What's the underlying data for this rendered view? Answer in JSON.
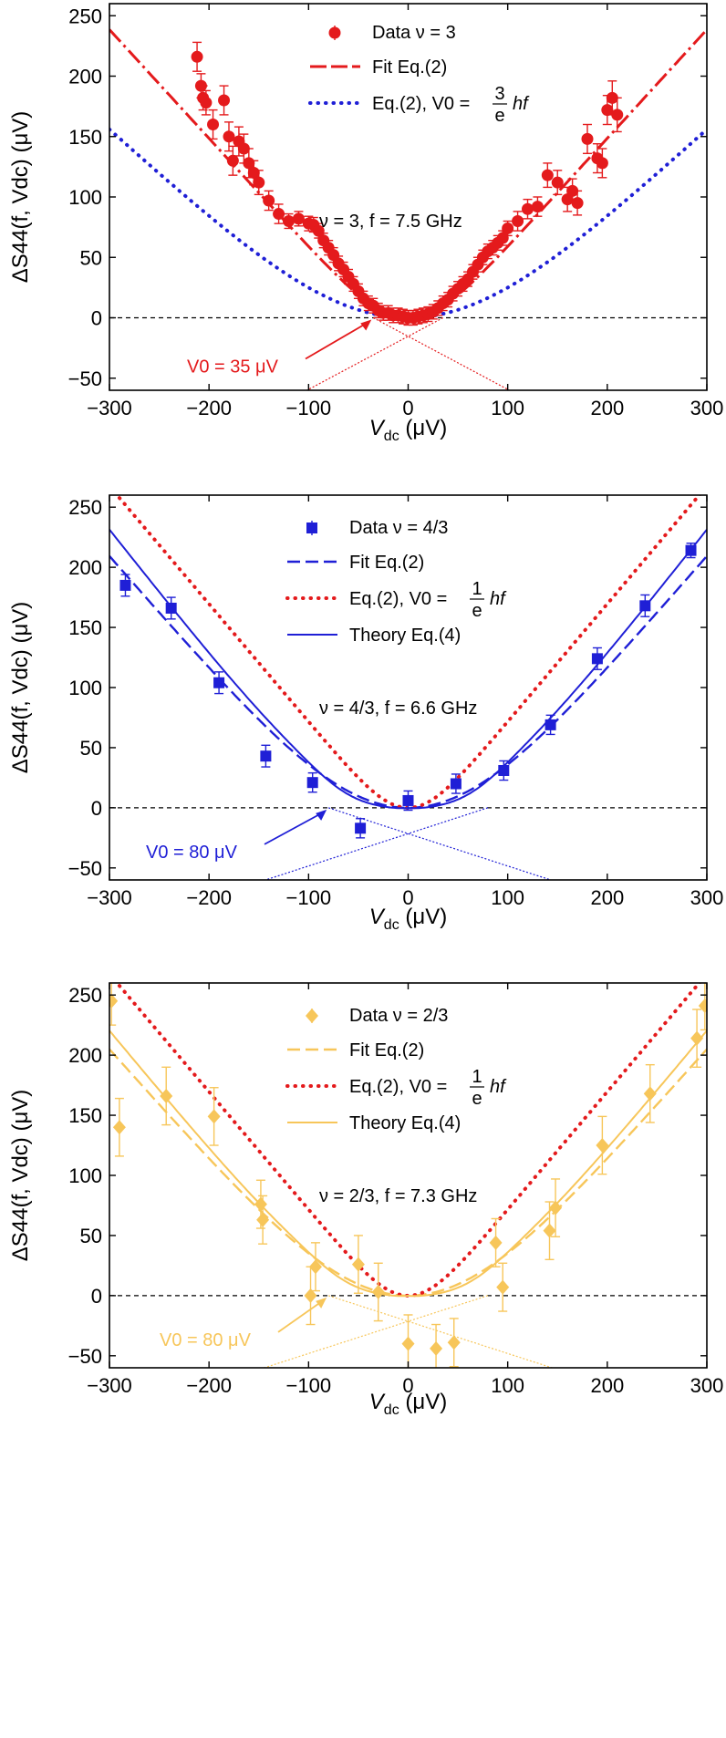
{
  "chart_data": [
    {
      "type": "scatter",
      "panel": "nu-3",
      "color": "#e41a1c",
      "marker": "circle",
      "xlabel_main": "V",
      "xlabel_sub": "dc",
      "xlabel_unit": " (μV)",
      "ylabel": "ΔS44(f, Vdc) (μV)",
      "xlim": [
        -300,
        300
      ],
      "ylim": [
        -60,
        260
      ],
      "xticks": [
        -300,
        -200,
        -100,
        0,
        100,
        200,
        300
      ],
      "xtick_labels": [
        "−300",
        "−200",
        "−100",
        "0",
        "100",
        "200",
        "300"
      ],
      "yticks": [
        -50,
        0,
        50,
        100,
        150,
        200,
        250
      ],
      "ytick_labels": [
        "−50",
        "0",
        "50",
        "100",
        "150",
        "200",
        "250"
      ],
      "annotation": "ν = 3, f = 7.5 GHz",
      "v0_label": "V0 = 35 μV",
      "v0": 35,
      "legend": {
        "data": "Data ν = 3",
        "fit": "Fit Eq.(2)",
        "eq": "Eq.(2), V0 = ",
        "eq_num": "3",
        "eq_den": "e",
        "eq_tail": "hf"
      },
      "series": [
        {
          "name": "Data ν = 3",
          "x": [
            -212,
            -208,
            -206,
            -203,
            -196,
            -185,
            -180,
            -176,
            -170,
            -165,
            -160,
            -155,
            -150,
            -140,
            -130,
            -120,
            -110,
            -100,
            -95,
            -90,
            -85,
            -80,
            -75,
            -70,
            -65,
            -60,
            -55,
            -50,
            -45,
            -40,
            -35,
            -30,
            -25,
            -20,
            -15,
            -10,
            -5,
            0,
            5,
            10,
            15,
            20,
            25,
            30,
            35,
            40,
            45,
            50,
            55,
            60,
            65,
            70,
            75,
            80,
            85,
            90,
            95,
            100,
            110,
            120,
            130,
            140,
            150,
            160,
            165,
            170,
            180,
            190,
            195,
            200,
            205,
            210
          ],
          "y": [
            216,
            192,
            182,
            178,
            160,
            180,
            150,
            130,
            146,
            140,
            128,
            120,
            112,
            97,
            86,
            80,
            82,
            78,
            77,
            72,
            64,
            58,
            52,
            45,
            40,
            34,
            28,
            22,
            16,
            12,
            10,
            6,
            4,
            4,
            2,
            2,
            1,
            0,
            0,
            1,
            2,
            3,
            5,
            8,
            12,
            15,
            20,
            24,
            28,
            32,
            38,
            44,
            50,
            55,
            58,
            62,
            66,
            74,
            80,
            90,
            92,
            118,
            112,
            98,
            105,
            95,
            148,
            132,
            128,
            172,
            182,
            168
          ],
          "err": [
            12,
            10,
            10,
            10,
            12,
            12,
            12,
            12,
            12,
            12,
            12,
            10,
            10,
            8,
            8,
            6,
            6,
            6,
            6,
            6,
            6,
            6,
            6,
            6,
            6,
            6,
            6,
            6,
            6,
            6,
            6,
            6,
            6,
            6,
            6,
            6,
            6,
            6,
            6,
            6,
            6,
            6,
            6,
            6,
            6,
            6,
            6,
            6,
            6,
            6,
            6,
            6,
            6,
            6,
            6,
            6,
            6,
            6,
            8,
            8,
            8,
            10,
            10,
            10,
            10,
            10,
            12,
            12,
            12,
            12,
            14,
            14
          ]
        },
        {
          "name": "Fit Eq.(2)",
          "model": "fit",
          "v0": 35,
          "slope": 0.9
        },
        {
          "name": "Eq.(2), V0 = 3/e hf",
          "model": "eq",
          "v0": 93,
          "slope": 0.75
        }
      ]
    },
    {
      "type": "scatter",
      "panel": "nu-4-3",
      "color": "#1f1fd6",
      "marker": "square",
      "xlabel_main": "V",
      "xlabel_sub": "dc",
      "xlabel_unit": " (μV)",
      "ylabel": "ΔS44(f, Vdc) (μV)",
      "xlim": [
        -300,
        300
      ],
      "ylim": [
        -60,
        260
      ],
      "xticks": [
        -300,
        -200,
        -100,
        0,
        100,
        200,
        300
      ],
      "xtick_labels": [
        "−300",
        "−200",
        "−100",
        "0",
        "100",
        "200",
        "300"
      ],
      "yticks": [
        -50,
        0,
        50,
        100,
        150,
        200,
        250
      ],
      "ytick_labels": [
        "−50",
        "0",
        "50",
        "100",
        "150",
        "200",
        "250"
      ],
      "annotation": "ν = 4/3, f = 6.6 GHz",
      "v0_label": "V0 = 80 μV",
      "v0": 80,
      "legend": {
        "data": "Data ν = 4/3",
        "fit": "Fit Eq.(2)",
        "eq": "Eq.(2), V0 = ",
        "eq_num": "1",
        "eq_den": "e",
        "eq_tail": "hf",
        "theory": "Theory Eq.(4)"
      },
      "series": [
        {
          "name": "Data ν = 4/3",
          "x": [
            -284,
            -238,
            -190,
            -143,
            -96,
            -48,
            0,
            48,
            96,
            143,
            190,
            238,
            284
          ],
          "y": [
            185,
            166,
            104,
            43,
            21,
            -17,
            6,
            20,
            31,
            69,
            124,
            168,
            214
          ],
          "err": [
            9,
            9,
            9,
            9,
            8,
            8,
            8,
            8,
            8,
            8,
            9,
            9,
            6
          ]
        },
        {
          "name": "Fit Eq.(2)",
          "model": "fit",
          "v0": 80,
          "slope": 0.95
        },
        {
          "name": "Eq.(2), V0 = 1/e hf",
          "model": "eq",
          "v0": 27,
          "slope": 0.98
        },
        {
          "name": "Theory Eq.(4)",
          "model": "theory",
          "v0": 80,
          "slope": 1.05
        }
      ]
    },
    {
      "type": "scatter",
      "panel": "nu-2-3",
      "color": "#f7c65a",
      "marker": "diamond",
      "xlabel_main": "V",
      "xlabel_sub": "dc",
      "xlabel_unit": " (μV)",
      "ylabel": "ΔS44(f, Vdc) (μV)",
      "xlim": [
        -300,
        300
      ],
      "ylim": [
        -60,
        260
      ],
      "xticks": [
        -300,
        -200,
        -100,
        0,
        100,
        200,
        300
      ],
      "xtick_labels": [
        "−300",
        "−200",
        "−100",
        "0",
        "100",
        "200",
        "300"
      ],
      "yticks": [
        -50,
        0,
        50,
        100,
        150,
        200,
        250
      ],
      "ytick_labels": [
        "−50",
        "0",
        "50",
        "100",
        "150",
        "200",
        "250"
      ],
      "annotation": "ν = 2/3, f = 7.3 GHz",
      "v0_label": "V0 = 80 μV",
      "v0": 80,
      "legend": {
        "data": "Data ν = 2/3",
        "fit": "Fit Eq.(2)",
        "eq": "Eq.(2), V0 = ",
        "eq_num": "1",
        "eq_den": "e",
        "eq_tail": "hf",
        "theory": "Theory Eq.(4)"
      },
      "series": [
        {
          "name": "Data ν = 2/3",
          "x": [
            -298,
            -290,
            -243,
            -195,
            -148,
            -146,
            -98,
            -93,
            -50,
            -30,
            0,
            28,
            46,
            88,
            95,
            142,
            148,
            195,
            243,
            290,
            298
          ],
          "y": [
            245,
            140,
            166,
            149,
            76,
            63,
            0,
            24,
            26,
            3,
            -40,
            -44,
            -39,
            44,
            7,
            54,
            73,
            125,
            168,
            214,
            241
          ],
          "err": [
            20,
            24,
            24,
            24,
            20,
            20,
            24,
            20,
            24,
            24,
            24,
            20,
            20,
            20,
            20,
            24,
            24,
            24,
            24,
            24,
            20
          ]
        },
        {
          "name": "Fit Eq.(2)",
          "model": "fit",
          "v0": 80,
          "slope": 0.93
        },
        {
          "name": "Eq.(2), V0 = 1/e hf",
          "model": "eq",
          "v0": 27,
          "slope": 0.98
        },
        {
          "name": "Theory Eq.(4)",
          "model": "theory",
          "v0": 80,
          "slope": 1.0
        }
      ]
    }
  ]
}
